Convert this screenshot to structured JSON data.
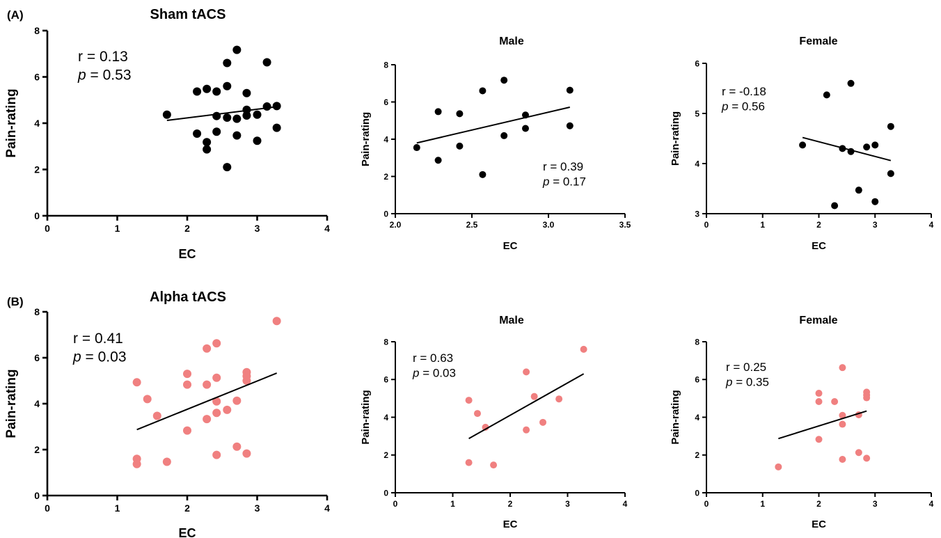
{
  "figure": {
    "panel_a_label": "(A)",
    "panel_b_label": "(B)"
  },
  "chart_data": [
    {
      "type": "scatter",
      "title": "Sham tACS",
      "xlabel": "EC",
      "ylabel": "Pain-rating",
      "xlim": [
        0,
        4
      ],
      "ylim": [
        0,
        8
      ],
      "xticks": [
        "0",
        "1",
        "2",
        "3",
        "4"
      ],
      "yticks": [
        "0",
        "2",
        "4",
        "6",
        "8"
      ],
      "grid": false,
      "marker_color": "#000000",
      "stats": {
        "r_label": "r =",
        "r_value": "0.13",
        "p_label": "p",
        "p_value": "= 0.53"
      },
      "points": [
        [
          1.71,
          4.37
        ],
        [
          2.14,
          5.37
        ],
        [
          2.14,
          3.55
        ],
        [
          2.28,
          5.48
        ],
        [
          2.28,
          3.18
        ],
        [
          2.28,
          2.87
        ],
        [
          2.42,
          5.37
        ],
        [
          2.42,
          4.31
        ],
        [
          2.42,
          3.63
        ],
        [
          2.57,
          6.6
        ],
        [
          2.57,
          5.6
        ],
        [
          2.57,
          4.24
        ],
        [
          2.57,
          2.1
        ],
        [
          2.71,
          7.17
        ],
        [
          2.71,
          4.19
        ],
        [
          2.71,
          3.47
        ],
        [
          2.85,
          5.3
        ],
        [
          2.85,
          4.58
        ],
        [
          2.85,
          4.33
        ],
        [
          3.0,
          4.37
        ],
        [
          3.0,
          3.24
        ],
        [
          3.14,
          6.63
        ],
        [
          3.14,
          4.72
        ],
        [
          3.28,
          4.74
        ],
        [
          3.28,
          3.8
        ]
      ],
      "fit": [
        [
          1.71,
          4.12
        ],
        [
          3.28,
          4.71
        ]
      ]
    },
    {
      "type": "scatter",
      "title": "Male",
      "xlabel": "EC",
      "ylabel": "Pain-rating",
      "xlim": [
        2.0,
        3.5
      ],
      "ylim": [
        0,
        8
      ],
      "xticks": [
        "2.0",
        "2.5",
        "3.0",
        "3.5"
      ],
      "yticks": [
        "0",
        "2",
        "4",
        "6",
        "8"
      ],
      "grid": false,
      "marker_color": "#000000",
      "stats": {
        "r_label": "r =",
        "r_value": "0.39",
        "p_label": "p",
        "p_value": "= 0.17"
      },
      "points": [
        [
          2.14,
          3.55
        ],
        [
          2.28,
          5.48
        ],
        [
          2.28,
          2.87
        ],
        [
          2.42,
          5.37
        ],
        [
          2.42,
          3.63
        ],
        [
          2.57,
          6.6
        ],
        [
          2.57,
          2.1
        ],
        [
          2.71,
          7.17
        ],
        [
          2.71,
          4.19
        ],
        [
          2.85,
          5.3
        ],
        [
          2.85,
          4.58
        ],
        [
          3.14,
          6.63
        ],
        [
          3.14,
          4.72
        ]
      ],
      "fit": [
        [
          2.14,
          3.8
        ],
        [
          3.14,
          5.72
        ]
      ]
    },
    {
      "type": "scatter",
      "title": "Female",
      "xlabel": "EC",
      "ylabel": "Pain-rating",
      "xlim": [
        0,
        4
      ],
      "ylim": [
        3,
        6
      ],
      "xticks": [
        "0",
        "1",
        "2",
        "3",
        "4"
      ],
      "yticks": [
        "3",
        "4",
        "5",
        "6"
      ],
      "grid": false,
      "marker_color": "#000000",
      "stats": {
        "r_label": "r =",
        "r_value": "-0.18",
        "p_label": "p",
        "p_value": "= 0.56"
      },
      "points": [
        [
          1.71,
          4.37
        ],
        [
          2.14,
          5.37
        ],
        [
          2.28,
          3.16
        ],
        [
          2.42,
          4.3
        ],
        [
          2.57,
          5.6
        ],
        [
          2.57,
          4.24
        ],
        [
          2.71,
          3.47
        ],
        [
          2.85,
          4.33
        ],
        [
          3.0,
          4.37
        ],
        [
          3.0,
          3.24
        ],
        [
          3.28,
          4.74
        ],
        [
          3.28,
          3.8
        ]
      ],
      "fit": [
        [
          1.71,
          4.52
        ],
        [
          3.28,
          4.06
        ]
      ]
    },
    {
      "type": "scatter",
      "title": "Alpha tACS",
      "xlabel": "EC",
      "ylabel": "Pain-rating",
      "xlim": [
        0,
        4
      ],
      "ylim": [
        0,
        8
      ],
      "xticks": [
        "0",
        "1",
        "2",
        "3",
        "4"
      ],
      "yticks": [
        "0",
        "2",
        "4",
        "6",
        "8"
      ],
      "grid": false,
      "marker_color": "#f08080",
      "stats": {
        "r_label": "r =",
        "r_value": "0.41",
        "p_label": "p",
        "p_value": "= 0.03"
      },
      "points": [
        [
          1.28,
          4.93
        ],
        [
          1.28,
          1.6
        ],
        [
          1.28,
          1.37
        ],
        [
          1.43,
          4.2
        ],
        [
          1.57,
          3.47
        ],
        [
          1.71,
          1.47
        ],
        [
          2.0,
          5.3
        ],
        [
          2.0,
          4.83
        ],
        [
          2.0,
          2.83
        ],
        [
          2.28,
          6.4
        ],
        [
          2.28,
          4.83
        ],
        [
          2.28,
          3.33
        ],
        [
          2.42,
          6.63
        ],
        [
          2.42,
          5.13
        ],
        [
          2.42,
          4.1
        ],
        [
          2.42,
          3.6
        ],
        [
          2.42,
          1.77
        ],
        [
          2.57,
          3.73
        ],
        [
          2.71,
          4.13
        ],
        [
          2.71,
          2.13
        ],
        [
          2.85,
          5.37
        ],
        [
          2.85,
          5.2
        ],
        [
          2.85,
          5.0
        ],
        [
          2.85,
          1.83
        ],
        [
          3.28,
          7.6
        ]
      ],
      "fit": [
        [
          1.28,
          2.87
        ],
        [
          3.28,
          5.33
        ]
      ]
    },
    {
      "type": "scatter",
      "title": "Male",
      "xlabel": "EC",
      "ylabel": "Pain-rating",
      "xlim": [
        0,
        4
      ],
      "ylim": [
        0,
        8
      ],
      "xticks": [
        "0",
        "1",
        "2",
        "3",
        "4"
      ],
      "yticks": [
        "0",
        "2",
        "4",
        "6",
        "8"
      ],
      "grid": false,
      "marker_color": "#f08080",
      "stats": {
        "r_label": "r =",
        "r_value": "0.63",
        "p_label": "p",
        "p_value": "= 0.03"
      },
      "points": [
        [
          1.28,
          4.9
        ],
        [
          1.28,
          1.6
        ],
        [
          1.43,
          4.2
        ],
        [
          1.57,
          3.47
        ],
        [
          1.71,
          1.47
        ],
        [
          2.28,
          6.4
        ],
        [
          2.28,
          3.33
        ],
        [
          2.42,
          5.1
        ],
        [
          2.57,
          3.73
        ],
        [
          2.85,
          4.97
        ],
        [
          3.28,
          7.6
        ]
      ],
      "fit": [
        [
          1.28,
          2.87
        ],
        [
          3.28,
          6.3
        ]
      ]
    },
    {
      "type": "scatter",
      "title": "Female",
      "xlabel": "EC",
      "ylabel": "Pain-rating",
      "xlim": [
        0,
        4
      ],
      "ylim": [
        0,
        8
      ],
      "xticks": [
        "0",
        "1",
        "2",
        "3",
        "4"
      ],
      "yticks": [
        "0",
        "2",
        "4",
        "6",
        "8"
      ],
      "grid": false,
      "marker_color": "#f08080",
      "stats": {
        "r_label": "r =",
        "r_value": "0.25",
        "p_label": "p",
        "p_value": "= 0.35"
      },
      "points": [
        [
          1.28,
          1.37
        ],
        [
          2.0,
          5.27
        ],
        [
          2.0,
          4.83
        ],
        [
          2.0,
          2.83
        ],
        [
          2.28,
          4.83
        ],
        [
          2.42,
          6.63
        ],
        [
          2.42,
          4.1
        ],
        [
          2.42,
          3.63
        ],
        [
          2.42,
          1.77
        ],
        [
          2.71,
          4.13
        ],
        [
          2.71,
          2.13
        ],
        [
          2.85,
          5.33
        ],
        [
          2.85,
          5.17
        ],
        [
          2.85,
          5.03
        ],
        [
          2.85,
          1.83
        ]
      ],
      "fit": [
        [
          1.28,
          2.87
        ],
        [
          2.85,
          4.33
        ]
      ]
    }
  ]
}
